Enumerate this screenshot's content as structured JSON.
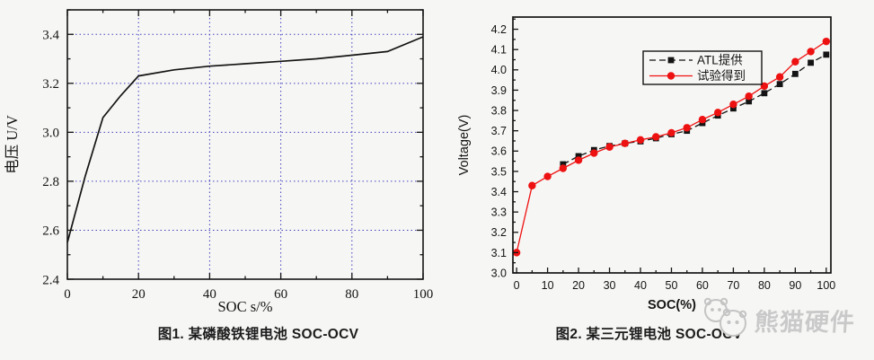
{
  "figures": [
    {
      "caption": "图1. 某磷酸铁锂电池 SOC-OCV"
    },
    {
      "caption": "图2. 某三元锂电池 SOC-OCV"
    }
  ],
  "watermark": {
    "label": "熊猫硬件",
    "icon": "panda-icon",
    "color": "#c9c9c9"
  },
  "chart_data": [
    {
      "id": "chart1",
      "type": "line",
      "title": "",
      "xlabel": "SOC  s/%",
      "ylabel": "电压 U/V",
      "xlim": [
        0,
        100
      ],
      "ylim": [
        2.4,
        3.5
      ],
      "x_major_ticks": [
        "0",
        "20",
        "40",
        "60",
        "80",
        "100"
      ],
      "x_minor_step": 10,
      "y_major_ticks": [
        "2.4",
        "2.6",
        "2.8",
        "3.0",
        "3.2",
        "3.4"
      ],
      "y_minor_step": 0.1,
      "grid": {
        "show": true,
        "color": "#4040c0",
        "style": "dotted",
        "x_lines": [
          20,
          40,
          60,
          80
        ],
        "y_lines": [
          2.6,
          2.8,
          3.0,
          3.2,
          3.4
        ]
      },
      "legend": null,
      "series": [
        {
          "name": "SOC-OCV",
          "color": "#141414",
          "marker": "none",
          "line_style": "solid",
          "x": [
            0,
            5,
            10,
            15,
            20,
            30,
            40,
            50,
            60,
            70,
            80,
            90,
            100
          ],
          "y": [
            2.55,
            2.82,
            3.06,
            3.15,
            3.23,
            3.255,
            3.27,
            3.28,
            3.29,
            3.3,
            3.315,
            3.33,
            3.39
          ]
        }
      ]
    },
    {
      "id": "chart2",
      "type": "line",
      "title": "",
      "xlabel": "SOC(%)",
      "ylabel": "Voltage(V)",
      "xlim": [
        -1.2,
        101.5
      ],
      "ylim": [
        3.0,
        4.26
      ],
      "x_major_ticks": [
        "0",
        "10",
        "20",
        "30",
        "40",
        "50",
        "60",
        "70",
        "80",
        "90",
        "100"
      ],
      "x_minor_step": 5,
      "y_major_ticks": [
        "3.0",
        "3.1",
        "3.2",
        "3.3",
        "3.4",
        "3.5",
        "3.6",
        "3.7",
        "3.8",
        "3.9",
        "4.0",
        "4.1",
        "4.2"
      ],
      "y_minor_step": 0.05,
      "grid": {
        "show": false
      },
      "legend": {
        "position": "top-center",
        "entries": [
          "ATL提供",
          "试验得到"
        ]
      },
      "series": [
        {
          "name": "ATL提供",
          "color": "#141414",
          "marker": "square",
          "line_style": "dashed",
          "x": [
            15,
            20,
            25,
            30,
            35,
            40,
            45,
            50,
            55,
            60,
            65,
            70,
            75,
            80,
            85,
            90,
            95,
            100
          ],
          "y": [
            3.535,
            3.575,
            3.605,
            3.625,
            3.638,
            3.648,
            3.663,
            3.683,
            3.7,
            3.738,
            3.775,
            3.81,
            3.845,
            3.885,
            3.93,
            3.98,
            4.035,
            4.075
          ]
        },
        {
          "name": "试验得到",
          "color": "#ee1111",
          "marker": "circle",
          "line_style": "solid",
          "x": [
            0,
            5,
            10,
            15,
            20,
            25,
            30,
            35,
            40,
            45,
            50,
            55,
            60,
            65,
            70,
            75,
            80,
            85,
            90,
            95,
            100
          ],
          "y": [
            3.1,
            3.43,
            3.475,
            3.515,
            3.555,
            3.59,
            3.62,
            3.638,
            3.655,
            3.67,
            3.69,
            3.715,
            3.755,
            3.79,
            3.83,
            3.87,
            3.92,
            3.965,
            4.04,
            4.09,
            4.14
          ]
        }
      ]
    }
  ]
}
